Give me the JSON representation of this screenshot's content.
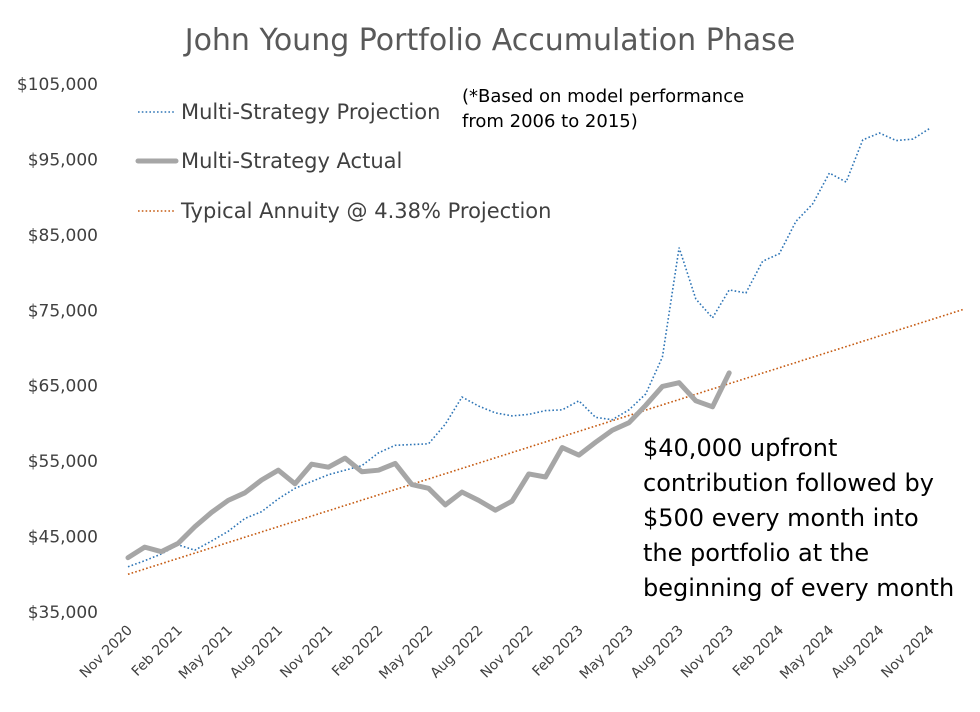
{
  "chart_data": {
    "type": "line",
    "title": "John Young Portfolio Accumulation Phase",
    "xlabel": "",
    "ylabel": "",
    "ylim": [
      35000,
      105000
    ],
    "yticks": [
      "$35,000",
      "$45,000",
      "$55,000",
      "$65,000",
      "$75,000",
      "$85,000",
      "$95,000",
      "$105,000"
    ],
    "ytick_values": [
      35000,
      45000,
      55000,
      65000,
      75000,
      85000,
      95000,
      105000
    ],
    "x_months": [
      "Nov 2020",
      "Dec 2020",
      "Jan 2021",
      "Feb 2021",
      "Mar 2021",
      "Apr 2021",
      "May 2021",
      "Jun 2021",
      "Jul 2021",
      "Aug 2021",
      "Sep 2021",
      "Oct 2021",
      "Nov 2021",
      "Dec 2021",
      "Jan 2022",
      "Feb 2022",
      "Mar 2022",
      "Apr 2022",
      "May 2022",
      "Jun 2022",
      "Jul 2022",
      "Aug 2022",
      "Sep 2022",
      "Oct 2022",
      "Nov 2022",
      "Dec 2022",
      "Jan 2023",
      "Feb 2023",
      "Mar 2023",
      "Apr 2023",
      "May 2023",
      "Jun 2023",
      "Jul 2023",
      "Aug 2023",
      "Sep 2023",
      "Oct 2023",
      "Nov 2023",
      "Dec 2023",
      "Jan 2024",
      "Feb 2024",
      "Mar 2024",
      "Apr 2024",
      "May 2024",
      "Jun 2024",
      "Jul 2024",
      "Aug 2024",
      "Sep 2024",
      "Oct 2024",
      "Nov 2024",
      "Dec 2024",
      "Jan 2025"
    ],
    "x_tick_labels": [
      "Nov 2020",
      "Feb 2021",
      "May 2021",
      "Aug 2021",
      "Nov 2021",
      "Feb 2022",
      "May 2022",
      "Aug 2022",
      "Nov 2022",
      "Feb 2023",
      "May 2023",
      "Aug 2023",
      "Nov 2023",
      "Feb 2024",
      "May 2024",
      "Aug 2024",
      "Nov 2024"
    ],
    "series": [
      {
        "name": "Multi-Strategy Projection",
        "color": "#2E75B6",
        "style": "dotted",
        "values": [
          41000,
          41800,
          42700,
          43900,
          43200,
          44400,
          45700,
          47400,
          48300,
          50000,
          51400,
          52300,
          53200,
          53800,
          54400,
          56100,
          57100,
          57200,
          57300,
          59900,
          63500,
          62300,
          61400,
          61000,
          61200,
          61700,
          61800,
          63000,
          60800,
          60500,
          61800,
          63900,
          68800,
          83300,
          76500,
          74000,
          77700,
          77300,
          81500,
          82500,
          86800,
          89100,
          93200,
          92000,
          97600,
          98500,
          97500,
          97700,
          99100
        ]
      },
      {
        "name": "Multi-Strategy Actual",
        "color": "#A6A6A6",
        "style": "solid",
        "values": [
          42200,
          43600,
          43000,
          44100,
          46300,
          48200,
          49800,
          50800,
          52500,
          53800,
          52000,
          54600,
          54200,
          55400,
          53600,
          53800,
          54700,
          51900,
          51400,
          49200,
          50900,
          49800,
          48500,
          49700,
          53300,
          52900,
          56800,
          55800,
          57500,
          59100,
          60100,
          62400,
          64900,
          65400,
          63000,
          62200,
          66700
        ]
      },
      {
        "name": "Typical Annuity @ 4.38% Projection",
        "color": "#C55A11",
        "style": "dotted",
        "values": [
          40000,
          75100
        ]
      }
    ],
    "annuity_x": [
      "Nov 2020",
      "Jan 2025"
    ],
    "legend_position": "top-left",
    "grid": false,
    "annotations": [
      {
        "lines": [
          "(*Based on model performance",
          "from 2006 to 2015)"
        ]
      },
      {
        "lines": [
          "$40,000 upfront",
          "contribution followed by",
          "$500 every month into",
          "the portfolio at the",
          "beginning of every month"
        ]
      }
    ]
  }
}
